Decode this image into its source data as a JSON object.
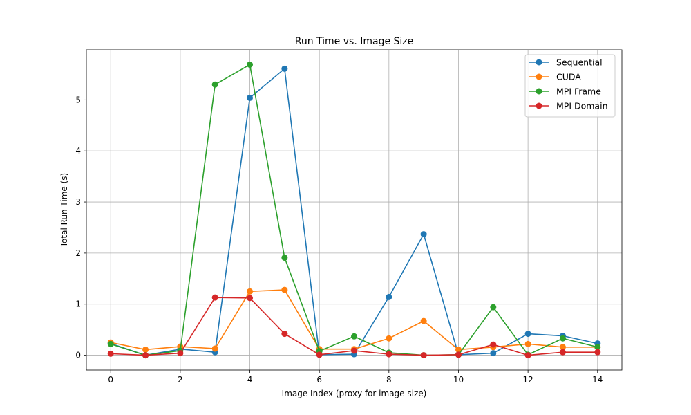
{
  "chart_data": {
    "type": "line",
    "title": "Run Time vs. Image Size",
    "xlabel": "Image Index (proxy for image size)",
    "ylabel": "Total Run Time (s)",
    "xlim": [
      -0.7,
      14.7
    ],
    "ylim": [
      -0.29,
      5.98
    ],
    "x_ticks": [
      0,
      2,
      4,
      6,
      8,
      10,
      12,
      14
    ],
    "y_ticks": [
      0,
      1,
      2,
      3,
      4,
      5
    ],
    "grid": true,
    "legend_position": "top-right",
    "x": [
      0,
      1,
      2,
      3,
      4,
      5,
      6,
      7,
      8,
      9,
      10,
      11,
      12,
      13,
      14
    ],
    "series": [
      {
        "name": "Sequential",
        "color": "#1f77b4",
        "values": [
          0.23,
          0.0,
          0.12,
          0.06,
          5.04,
          5.61,
          0.01,
          0.02,
          1.14,
          2.37,
          0.01,
          0.04,
          0.42,
          0.38,
          0.23
        ]
      },
      {
        "name": "CUDA",
        "color": "#ff7f0e",
        "values": [
          0.25,
          0.11,
          0.17,
          0.13,
          1.25,
          1.28,
          0.12,
          0.12,
          0.33,
          0.67,
          0.11,
          0.16,
          0.22,
          0.16,
          0.16
        ]
      },
      {
        "name": "MPI Frame",
        "color": "#2ca02c",
        "values": [
          0.22,
          0.0,
          0.09,
          5.3,
          5.69,
          1.91,
          0.08,
          0.37,
          0.05,
          0.0,
          0.01,
          0.94,
          0.01,
          0.33,
          0.16
        ]
      },
      {
        "name": "MPI Domain",
        "color": "#d62728",
        "values": [
          0.03,
          0.0,
          0.04,
          1.13,
          1.12,
          0.42,
          0.01,
          0.09,
          0.02,
          0.0,
          0.01,
          0.21,
          0.0,
          0.06,
          0.06
        ]
      }
    ]
  }
}
